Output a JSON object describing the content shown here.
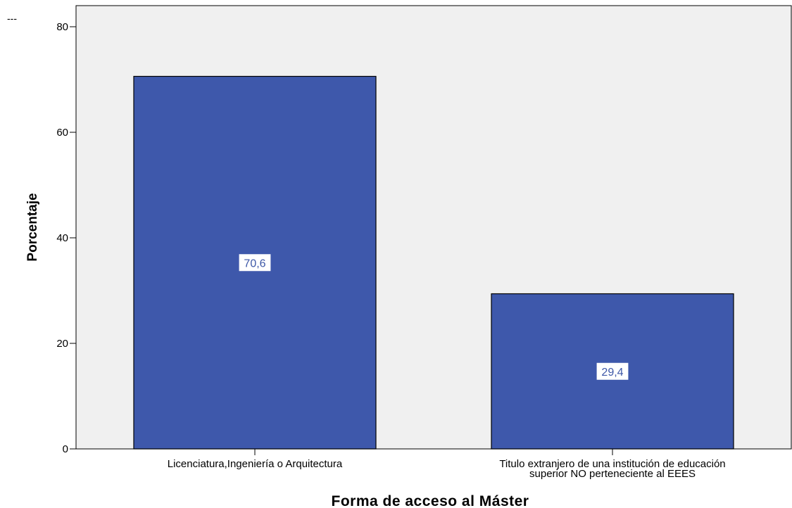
{
  "corner_mark": "---",
  "chart_data": {
    "type": "bar",
    "categories": [
      [
        "Licenciatura,Ingeniería o Arquitectura"
      ],
      [
        "Titulo extranjero de una institución de educación",
        "superior NO perteneciente al EEES"
      ]
    ],
    "values": [
      70.6,
      29.4
    ],
    "data_labels": [
      "70,6",
      "29,4"
    ],
    "xlabel": "Forma de acceso al Máster",
    "ylabel": "Porcentaje",
    "ylim": [
      0,
      84
    ],
    "yticks": [
      0,
      20,
      40,
      60,
      80
    ],
    "grid": false,
    "colors": {
      "bar_fill": "#3e58ab",
      "bar_stroke": "#000000",
      "plot_background": "#f0f0f0",
      "label_background": "#ffffff",
      "label_text": "#3d57a7"
    }
  }
}
